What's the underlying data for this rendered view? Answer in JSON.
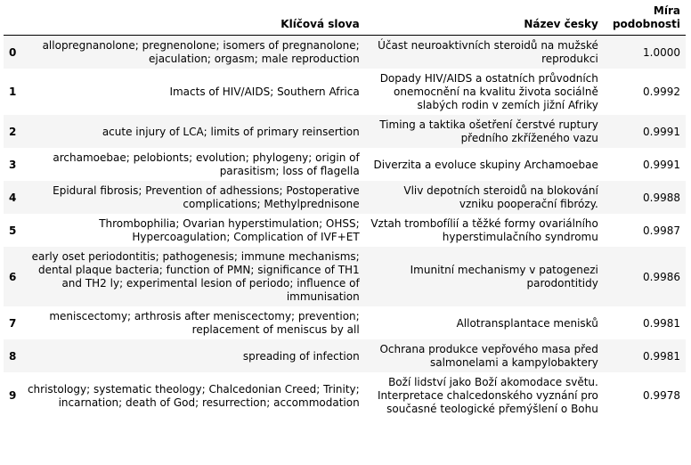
{
  "table": {
    "headers": {
      "index": "",
      "keywords": "Klíčová slova",
      "czech_title": "Název česky",
      "similarity": "Míra podobnosti"
    },
    "rows": [
      {
        "index": "0",
        "keywords": "allopregnanolone; pregnenolone; isomers of pregnanolone; ejaculation; orgasm; male reproduction",
        "czech_title": "Účast neuroaktivních steroidů na mužské reprodukci",
        "similarity": "1.0000"
      },
      {
        "index": "1",
        "keywords": "Imacts of HIV/AIDS; Southern Africa",
        "czech_title": "Dopady HIV/AIDS a ostatních průvodních onemocnění na kvalitu života sociálně slabých rodin v zemích jižní Afriky",
        "similarity": "0.9992"
      },
      {
        "index": "2",
        "keywords": "acute injury of LCA; limits of primary reinsertion",
        "czech_title": "Timing a taktika ošetření čerstvé ruptury předního zkříženého vazu",
        "similarity": "0.9991"
      },
      {
        "index": "3",
        "keywords": "archamoebae; pelobionts; evolution; phylogeny; origin of parasitism; loss of flagella",
        "czech_title": "Diverzita a evoluce skupiny Archamoebae",
        "similarity": "0.9991"
      },
      {
        "index": "4",
        "keywords": "Epidural fibrosis; Prevention of adhessions; Postoperative complications; Methylprednisone",
        "czech_title": "Vliv depotních steroidů na blokování vzniku pooperační fibrózy.",
        "similarity": "0.9988"
      },
      {
        "index": "5",
        "keywords": "Thrombophilia; Ovarian hyperstimulation; OHSS; Hypercoagulation; Complication of IVF+ET",
        "czech_title": "Vztah trombofílií a těžké formy ovariálního hyperstimulačního syndromu",
        "similarity": "0.9987"
      },
      {
        "index": "6",
        "keywords": "early oset periodontitis; pathogenesis; immune mechanisms; dental plaque bacteria; function of PMN; significance of TH1 and TH2 ly; experimental lesion of periodo; influence of immunisation",
        "czech_title": "Imunitní mechanismy v patogenezi parodontitidy",
        "similarity": "0.9986"
      },
      {
        "index": "7",
        "keywords": "meniscectomy; arthrosis after meniscectomy; prevention; replacement of meniscus by all",
        "czech_title": "Allotransplantace menisků",
        "similarity": "0.9981"
      },
      {
        "index": "8",
        "keywords": "spreading of infection",
        "czech_title": "Ochrana produkce vepřového masa před salmonelami a kampylobaktery",
        "similarity": "0.9981"
      },
      {
        "index": "9",
        "keywords": "christology; systematic theology; Chalcedonian Creed; Trinity; incarnation; death of God; resurrection; accommodation",
        "czech_title": "Boží lidství jako Boží akomodace světu. Interpretace chalcedonského vyznání pro současné teologické přemýšlení o Bohu",
        "similarity": "0.9978"
      }
    ]
  }
}
